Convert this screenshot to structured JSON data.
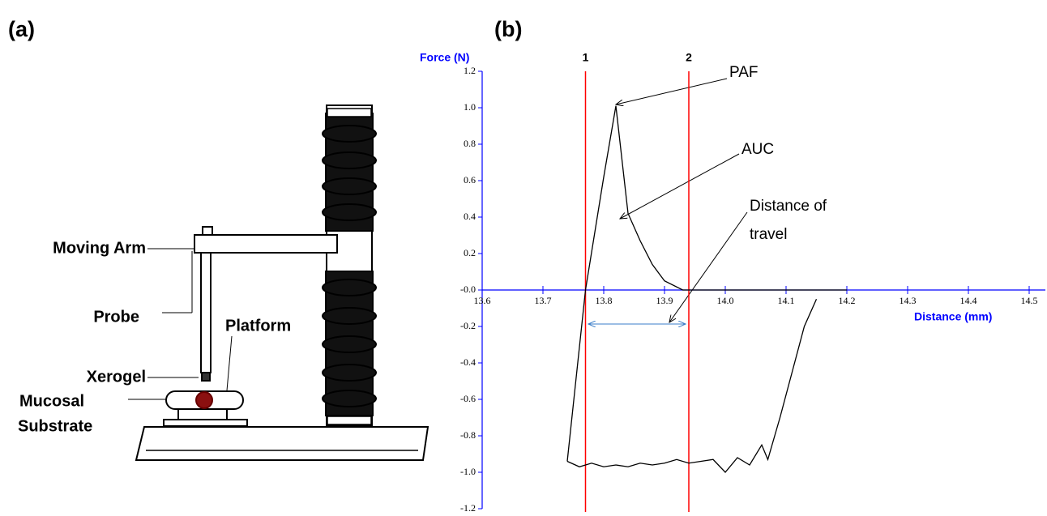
{
  "panel_a": {
    "label": "(a)",
    "labels": [
      "Moving Arm",
      "Probe",
      "Platform",
      "Xerogel",
      "Mucosal",
      "Substrate"
    ]
  },
  "chart_data": {
    "type": "line",
    "panel_label": "(b)",
    "y_label": "Force (N)",
    "x_label": "Distance (mm)",
    "xlim": [
      13.6,
      14.5
    ],
    "ylim": [
      -1.2,
      1.2
    ],
    "xticks": [
      13.6,
      13.7,
      13.8,
      13.9,
      {
        "value": 14,
        "label": "14.0"
      },
      14.1,
      14.2,
      14.3,
      14.4,
      14.5
    ],
    "yticks": [
      1.2,
      {
        "value": 1,
        "label": "1.0"
      },
      0.8,
      0.6,
      0.4,
      0.2,
      {
        "value": 0,
        "label": "-0.0"
      },
      -0.2,
      -0.4,
      -0.6,
      -0.8,
      {
        "value": -1,
        "label": "-1.0"
      },
      -1.2
    ],
    "axis_color": "#0000ff",
    "series": [
      {
        "color": "#000000",
        "x": [
          13.74,
          13.77,
          13.8,
          13.82,
          13.84,
          13.86,
          13.88,
          13.9,
          13.93,
          14.2
        ],
        "values": [
          -0.94,
          0,
          0.62,
          1.01,
          0.42,
          0.27,
          0.14,
          0.05,
          0,
          0
        ]
      },
      {
        "color": "#000000",
        "x": [
          13.74,
          13.76,
          13.78,
          13.8,
          13.82,
          13.84,
          13.86,
          13.88,
          13.9,
          13.92,
          13.94,
          13.96,
          13.98,
          14.0,
          14.02,
          14.04,
          14.06,
          14.07,
          14.09,
          14.11,
          14.13,
          14.15
        ],
        "values": [
          -0.94,
          -0.97,
          -0.95,
          -0.97,
          -0.96,
          -0.97,
          -0.95,
          -0.96,
          -0.95,
          -0.93,
          -0.95,
          -0.94,
          -0.93,
          -1.0,
          -0.92,
          -0.96,
          -0.85,
          -0.93,
          -0.7,
          -0.45,
          -0.2,
          -0.05
        ]
      }
    ],
    "markers": [
      {
        "label": "1",
        "x": 13.77
      },
      {
        "label": "2",
        "x": 13.94
      }
    ],
    "marker_color": "#ff0000",
    "annotations": [
      "PAF",
      "AUC",
      "Distance of",
      "travel"
    ]
  }
}
